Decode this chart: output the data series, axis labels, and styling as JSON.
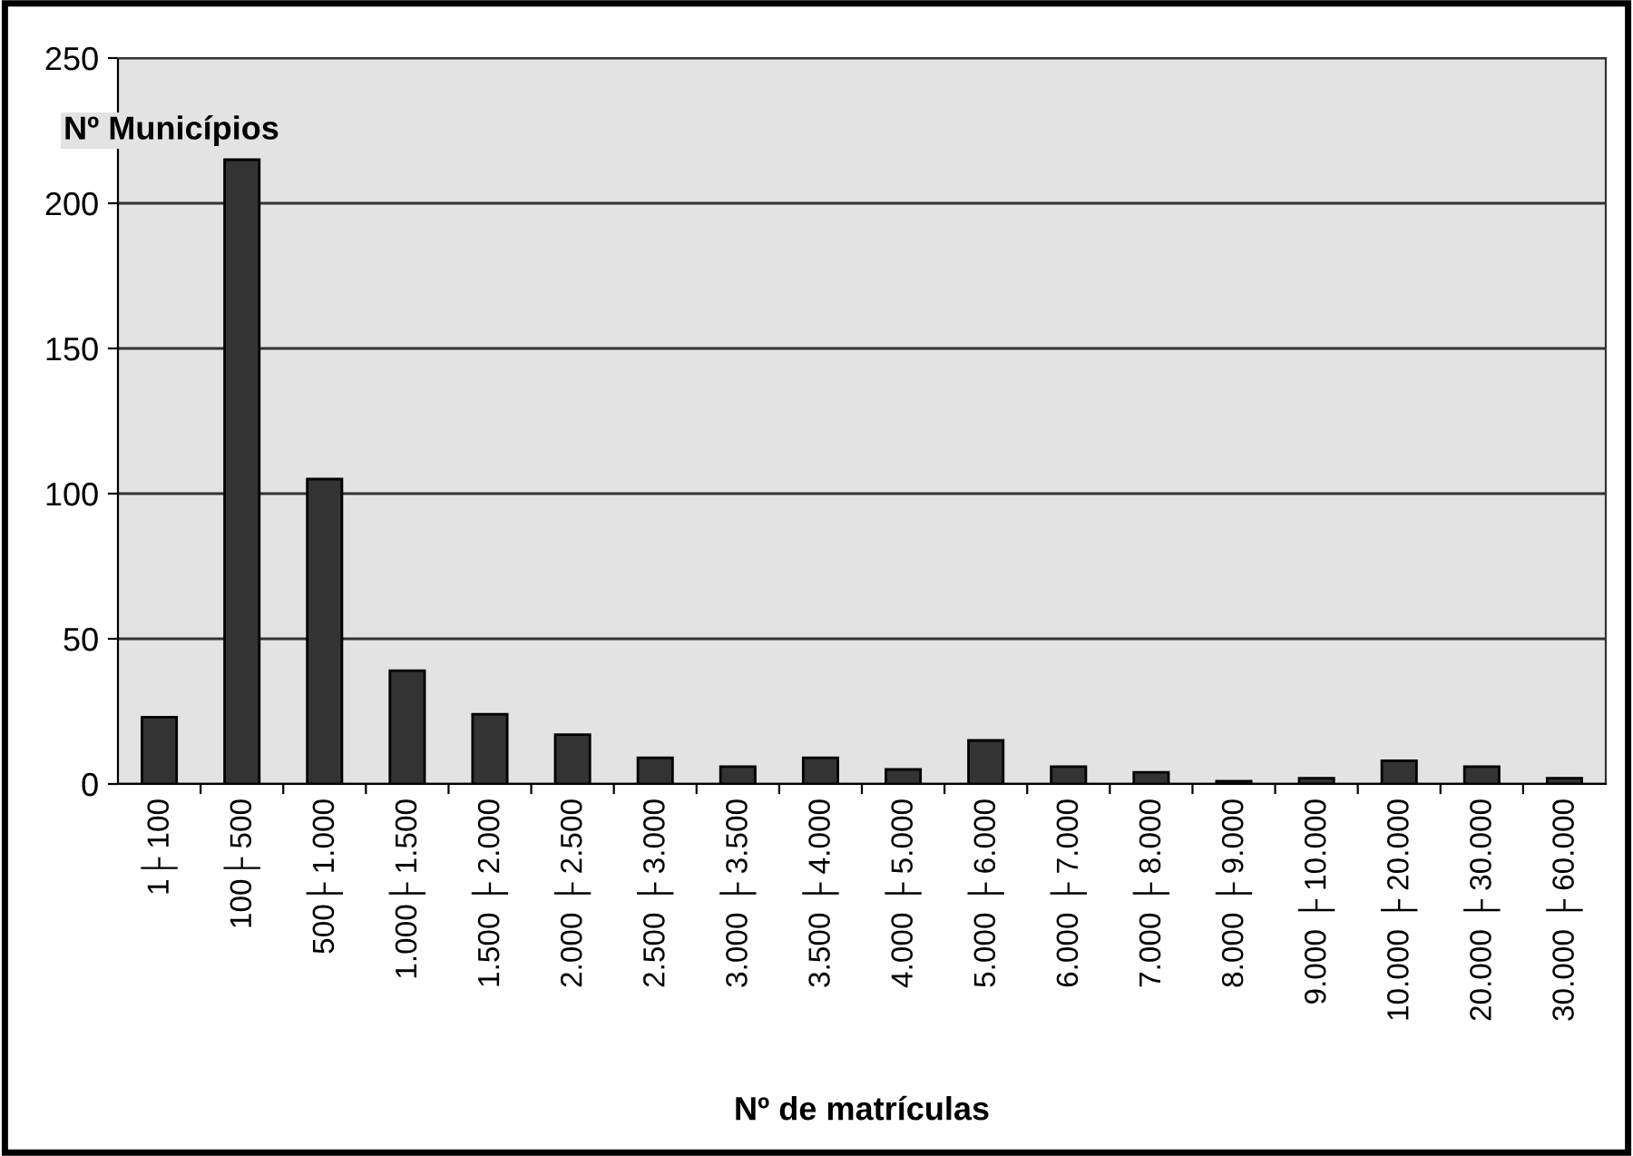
{
  "chart_data": {
    "type": "bar",
    "xlabel": "Nº de matrículas",
    "ylabel": "Nº Municípios",
    "categories": [
      "1├ 100",
      "100├ 500",
      "500├ 1.000",
      "1.000├ 1.500",
      "1.500 ├ 2.000",
      "2.000 ├ 2.500",
      "2.500 ├ 3.000",
      "3.000 ├ 3.500",
      "3.500 ├ 4.000",
      "4.000 ├ 5.000",
      "5.000 ├ 6.000",
      "6.000 ├ 7.000",
      "7.000 ├ 8.000",
      "8.000 ├ 9.000",
      "9.000 ├ 10.000",
      "10.000 ├ 20.000",
      "20.000 ├ 30.000",
      "30.000 ├ 60.000"
    ],
    "values": [
      23,
      215,
      105,
      39,
      24,
      17,
      9,
      6,
      9,
      5,
      15,
      6,
      4,
      1,
      2,
      8,
      6,
      2
    ],
    "color": "#333333",
    "ylim": [
      0,
      250
    ],
    "yticks": [
      0,
      50,
      100,
      150,
      200,
      250
    ],
    "grid": "y"
  }
}
